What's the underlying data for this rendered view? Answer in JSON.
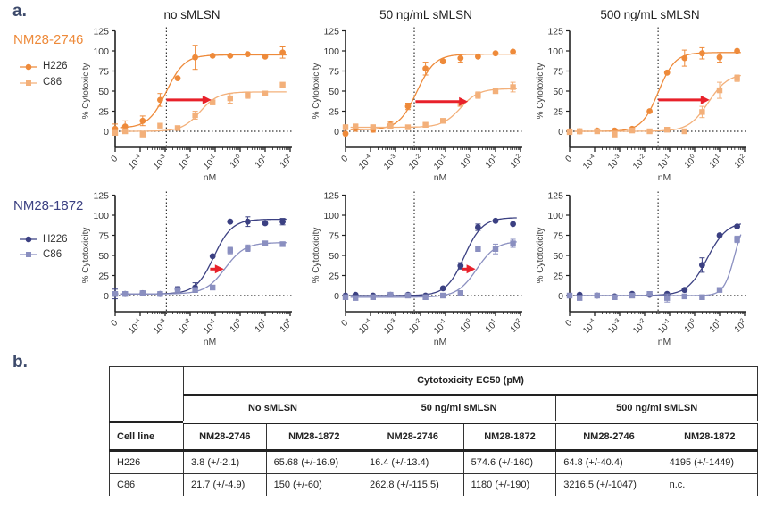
{
  "figure": {
    "label_a": "a.",
    "label_b": "b.",
    "antibodies": [
      {
        "name": "NM28-2746",
        "color": "#ee8a3a",
        "light": "#f3b07a"
      },
      {
        "name": "NM28-1872",
        "color": "#3b4082",
        "light": "#8a8fc0"
      }
    ],
    "legend": [
      "H226",
      "C86"
    ],
    "column_titles": [
      "no sMLSN",
      "50 ng/mL sMLSN",
      "500 ng/mL sMLSN"
    ],
    "arrow_color": "#e8212a"
  },
  "chart_data": {
    "type": "scatter",
    "xlabel": "nM",
    "ylabel": "% Cytotoxicity",
    "ylim": [
      -25,
      125
    ],
    "yticks": [
      "125",
      "100",
      "75",
      "50",
      "25",
      "0"
    ],
    "xscale": "log10 with zero point",
    "xticklabels": [
      {
        "base": "0",
        "exp": ""
      },
      {
        "base": "10",
        "exp": "-4"
      },
      {
        "base": "10",
        "exp": "-3"
      },
      {
        "base": "10",
        "exp": "-2"
      },
      {
        "base": "10",
        "exp": "-1"
      },
      {
        "base": "10",
        "exp": "0"
      },
      {
        "base": "10",
        "exp": "1"
      },
      {
        "base": "10",
        "exp": "2"
      }
    ],
    "x_log10_nM": [
      null,
      -4.6,
      -3.9,
      -3.2,
      -2.5,
      -1.8,
      -1.1,
      -0.4,
      0.3,
      1.0,
      1.7
    ],
    "panels": [
      {
        "antibody": "NM28-2746",
        "condition": "no sMLSN",
        "vline_log10": -2.95,
        "arrow": {
          "from": -2.95,
          "to": -1.15,
          "y": 39
        },
        "series": [
          {
            "name": "H226",
            "values": [
              3,
              6,
              13,
              39,
              66,
              92,
              94,
              94,
              96,
              93,
              98
            ],
            "err": [
              6,
              7,
              6,
              8,
              2,
              15,
              2,
              1,
              1,
              2,
              7
            ],
            "fit": {
              "bottom": 4,
              "top": 95,
              "logEC50": -2.95,
              "hill": 1.2
            }
          },
          {
            "name": "C86",
            "values": [
              -2,
              0,
              -4,
              7,
              4,
              20,
              36,
              41,
              45,
              47,
              58
            ],
            "err": [
              2,
              2,
              2,
              1,
              2,
              5,
              3,
              6,
              4,
              2,
              1
            ],
            "fit": {
              "bottom": 0,
              "top": 49,
              "logEC50": -1.6,
              "hill": 1.2
            }
          }
        ]
      },
      {
        "antibody": "NM28-2746",
        "condition": "50 ng/mL sMLSN",
        "vline_log10": -2.25,
        "arrow": {
          "from": -2.2,
          "to": -0.1,
          "y": 37
        },
        "series": [
          {
            "name": "H226",
            "values": [
              -3,
              4,
              2,
              8,
              31,
              78,
              87,
              91,
              93,
              97,
              99
            ],
            "err": [
              1,
              4,
              3,
              4,
              4,
              8,
              2,
              5,
              1,
              1,
              1
            ],
            "fit": {
              "bottom": 2,
              "top": 96,
              "logEC50": -2.15,
              "hill": 1.2
            }
          },
          {
            "name": "C86",
            "values": [
              5,
              6,
              5,
              7,
              5,
              8,
              13,
              34,
              45,
              50,
              55
            ],
            "err": [
              3,
              3,
              3,
              2,
              1,
              3,
              2,
              3,
              4,
              1,
              6
            ],
            "fit": {
              "bottom": 5,
              "top": 53,
              "logEC50": -0.4,
              "hill": 1.2
            }
          }
        ]
      },
      {
        "antibody": "NM28-2746",
        "condition": "500 ng/mL sMLSN",
        "vline_log10": -1.46,
        "arrow": {
          "from": -1.45,
          "to": 0.6,
          "y": 39
        },
        "series": [
          {
            "name": "H226",
            "values": [
              0,
              0,
              1,
              1,
              3,
              25,
              73,
              91,
              97,
              92,
              100
            ],
            "err": [
              2,
              3,
              2,
              2,
              2,
              1,
              1,
              10,
              7,
              6,
              1
            ],
            "fit": {
              "bottom": 0,
              "top": 98,
              "logEC50": -1.45,
              "hill": 1.3
            }
          },
          {
            "name": "C86",
            "values": [
              -1,
              0,
              0,
              -4,
              1,
              0,
              2,
              0,
              24,
              51,
              66
            ],
            "err": [
              1,
              1,
              1,
              2,
              1,
              1,
              1,
              1,
              7,
              10,
              4
            ],
            "fit": {
              "bottom": 0,
              "top": 72,
              "logEC50": 0.55,
              "hill": 1.1
            }
          }
        ]
      },
      {
        "antibody": "NM28-1872",
        "condition": "no sMLSN",
        "vline_log10": -2.95,
        "arrow": {
          "from": -1.2,
          "to": -0.65,
          "y": 33
        },
        "series": [
          {
            "name": "H226",
            "values": [
              2,
              2,
              3,
              2,
              8,
              10,
              49,
              92,
              92,
              90,
              92
            ],
            "err": [
              6,
              1,
              1,
              1,
              3,
              6,
              1,
              1,
              6,
              2,
              4
            ],
            "fit": {
              "bottom": 2,
              "top": 95,
              "logEC50": -1.05,
              "hill": 1.2
            }
          },
          {
            "name": "C86",
            "values": [
              2,
              2,
              3,
              2,
              7,
              7,
              10,
              56,
              59,
              65,
              64
            ],
            "err": [
              1,
              1,
              1,
              1,
              2,
              2,
              1,
              4,
              4,
              2,
              1
            ],
            "fit": {
              "bottom": 2,
              "top": 66,
              "logEC50": -0.6,
              "hill": 1.1
            }
          }
        ]
      },
      {
        "antibody": "NM28-1872",
        "condition": "50 ng/mL sMLSN",
        "vline_log10": -2.25,
        "arrow": {
          "from": -0.35,
          "to": 0.2,
          "y": 33
        },
        "series": [
          {
            "name": "H226",
            "values": [
              0,
              1,
              0,
              1,
              1,
              0,
              9,
              37,
              85,
              93,
              89
            ],
            "err": [
              1,
              1,
              1,
              1,
              2,
              1,
              1,
              4,
              4,
              1,
              1
            ],
            "fit": {
              "bottom": 0,
              "top": 97,
              "logEC50": -0.25,
              "hill": 1.2
            }
          },
          {
            "name": "C86",
            "values": [
              -2,
              -3,
              -2,
              1,
              0,
              -2,
              0,
              3,
              58,
              58,
              65
            ],
            "err": [
              1,
              1,
              1,
              1,
              1,
              1,
              1,
              3,
              2,
              6,
              5
            ],
            "fit": {
              "bottom": -2,
              "top": 68,
              "logEC50": 0.25,
              "hill": 1.1
            }
          }
        ]
      },
      {
        "antibody": "NM28-1872",
        "condition": "500 ng/mL sMLSN",
        "vline_log10": -1.46,
        "arrow": null,
        "series": [
          {
            "name": "H226",
            "values": [
              0,
              1,
              0,
              -1,
              2,
              1,
              2,
              7,
              38,
              75,
              86
            ],
            "err": [
              1,
              1,
              1,
              1,
              1,
              1,
              2,
              2,
              9,
              1,
              2
            ],
            "fit": {
              "bottom": 0,
              "top": 92,
              "logEC50": 0.5,
              "hill": 1.1
            }
          },
          {
            "name": "C86",
            "values": [
              0,
              -3,
              0,
              -2,
              0,
              2,
              -3,
              -1,
              -2,
              7,
              70
            ],
            "err": [
              1,
              1,
              1,
              1,
              1,
              3,
              5,
              2,
              2,
              2,
              4
            ],
            "fit": {
              "bottom": 0,
              "top": 100,
              "logEC50": 1.6,
              "hill": 2
            }
          }
        ]
      }
    ]
  },
  "table": {
    "title": "Cytotoxicity EC50 (pM)",
    "conditions": [
      "No sMLSN",
      "50 ng/ml sMLSN",
      "500 ng/ml sMLSN"
    ],
    "row_header": "Cell line",
    "antibodies": [
      "NM28-2746",
      "NM28-1872",
      "NM28-2746",
      "NM28-1872",
      "NM28-2746",
      "NM28-1872"
    ],
    "rows": [
      {
        "cell_line": "H226",
        "values": [
          "3.8 (+/-2.1)",
          "65.68 (+/-16.9)",
          "16.4 (+/-13.4)",
          "574.6 (+/-160)",
          "64.8 (+/-40.4)",
          "4195 (+/-1449)"
        ]
      },
      {
        "cell_line": "C86",
        "values": [
          "21.7 (+/-4.9)",
          "150 (+/-60)",
          "262.8 (+/-115.5)",
          "1180 (+/-190)",
          "3216.5 (+/-1047)",
          "n.c."
        ]
      }
    ]
  }
}
